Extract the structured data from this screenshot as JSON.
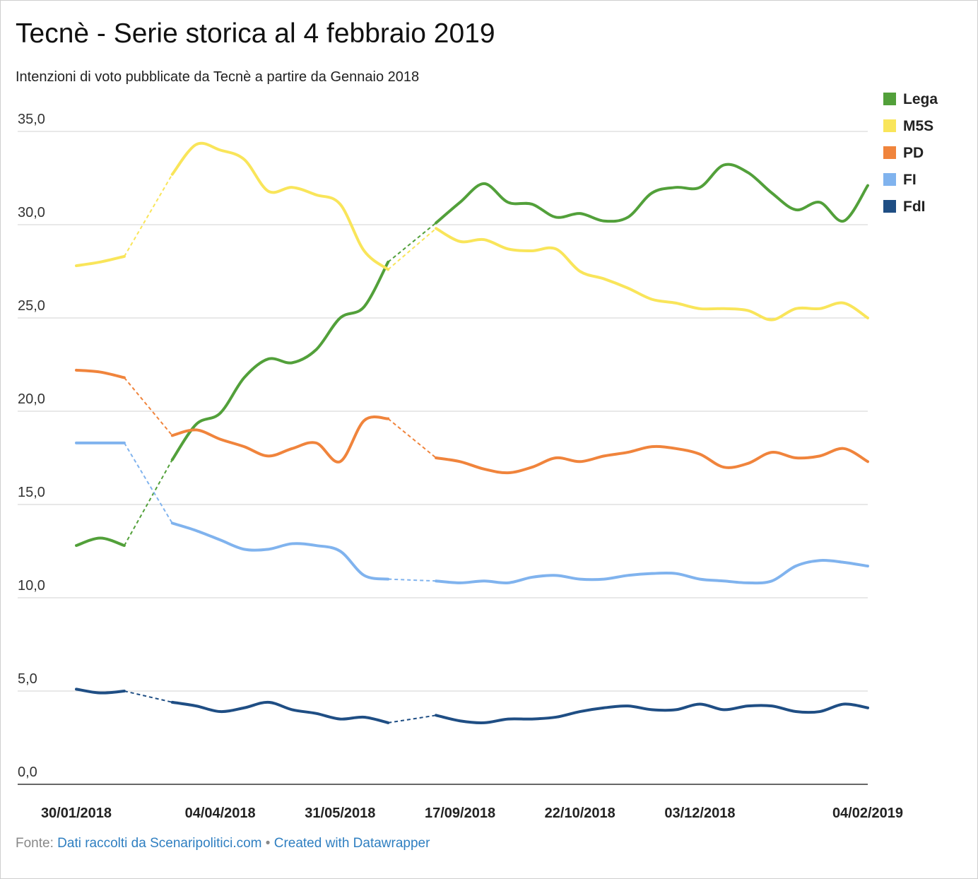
{
  "chart_data": {
    "type": "line",
    "title": "Tecnè - Serie storica al 4 febbraio 2019",
    "subtitle": "Intenzioni di voto pubblicate da Tecnè a partire da Gennaio 2018",
    "categories": [
      "30/01/2018",
      null,
      null,
      null,
      null,
      null,
      "04/04/2018",
      null,
      null,
      null,
      null,
      "31/05/2018",
      null,
      null,
      null,
      null,
      "17/09/2018",
      null,
      null,
      null,
      null,
      "22/10/2018",
      null,
      null,
      null,
      null,
      "03/12/2018",
      null,
      null,
      null,
      null,
      null,
      null,
      "04/02/2019"
    ],
    "series": [
      {
        "name": "Lega",
        "color": "#52a03a",
        "values": [
          12.8,
          13.2,
          12.8,
          null,
          17.4,
          19.3,
          19.9,
          21.8,
          22.8,
          22.6,
          23.3,
          25.0,
          25.6,
          28.0,
          null,
          30.1,
          31.2,
          32.2,
          31.2,
          31.1,
          30.4,
          30.6,
          30.2,
          30.4,
          31.7,
          32.0,
          32.0,
          33.2,
          32.8,
          31.7,
          30.8,
          31.2,
          30.2,
          32.1
        ]
      },
      {
        "name": "M5S",
        "color": "#f9e55a",
        "values": [
          27.8,
          28.0,
          28.3,
          null,
          32.7,
          34.3,
          34.0,
          33.5,
          31.8,
          32.0,
          31.6,
          31.1,
          28.6,
          27.6,
          null,
          29.8,
          29.1,
          29.2,
          28.7,
          28.6,
          28.7,
          27.5,
          27.1,
          26.6,
          26.0,
          25.8,
          25.5,
          25.5,
          25.4,
          24.9,
          25.5,
          25.5,
          25.8,
          25.0
        ]
      },
      {
        "name": "PD",
        "color": "#f0843c",
        "values": [
          22.2,
          22.1,
          21.8,
          null,
          18.7,
          19.0,
          18.5,
          18.1,
          17.6,
          18.0,
          18.3,
          17.3,
          19.5,
          19.6,
          null,
          17.5,
          17.3,
          16.9,
          16.7,
          17.0,
          17.5,
          17.3,
          17.6,
          17.8,
          18.1,
          18.0,
          17.7,
          17.0,
          17.2,
          17.8,
          17.5,
          17.6,
          18.0,
          17.3
        ]
      },
      {
        "name": "FI",
        "color": "#80b3ee",
        "values": [
          18.3,
          18.3,
          18.3,
          null,
          14.0,
          13.6,
          13.1,
          12.6,
          12.6,
          12.9,
          12.8,
          12.5,
          11.2,
          11.0,
          null,
          10.9,
          10.8,
          10.9,
          10.8,
          11.1,
          11.2,
          11.0,
          11.0,
          11.2,
          11.3,
          11.3,
          11.0,
          10.9,
          10.8,
          10.9,
          11.7,
          12.0,
          11.9,
          11.7
        ]
      },
      {
        "name": "FdI",
        "color": "#1f4e84",
        "values": [
          5.1,
          4.9,
          5.0,
          null,
          4.4,
          4.2,
          3.9,
          4.1,
          4.4,
          4.0,
          3.8,
          3.5,
          3.6,
          3.3,
          null,
          3.7,
          3.4,
          3.3,
          3.5,
          3.5,
          3.6,
          3.9,
          4.1,
          4.2,
          4.0,
          4.0,
          4.3,
          4.0,
          4.2,
          4.2,
          3.9,
          3.9,
          4.3,
          4.1
        ]
      }
    ],
    "ylim": [
      0,
      35
    ],
    "yticks": [
      {
        "value": 0,
        "label": "0,0"
      },
      {
        "value": 5,
        "label": "5,0"
      },
      {
        "value": 10,
        "label": "10,0"
      },
      {
        "value": 15,
        "label": "15,0"
      },
      {
        "value": 20,
        "label": "20,0"
      },
      {
        "value": 25,
        "label": "25,0"
      },
      {
        "value": 30,
        "label": "30,0"
      },
      {
        "value": 35,
        "label": "35,0"
      }
    ],
    "grid": true,
    "legend": "right"
  },
  "footer": {
    "prefix": "Fonte:",
    "source": "Dati raccolti da Scenaripolitici.com",
    "separator": "•",
    "credit": "Created with Datawrapper"
  }
}
